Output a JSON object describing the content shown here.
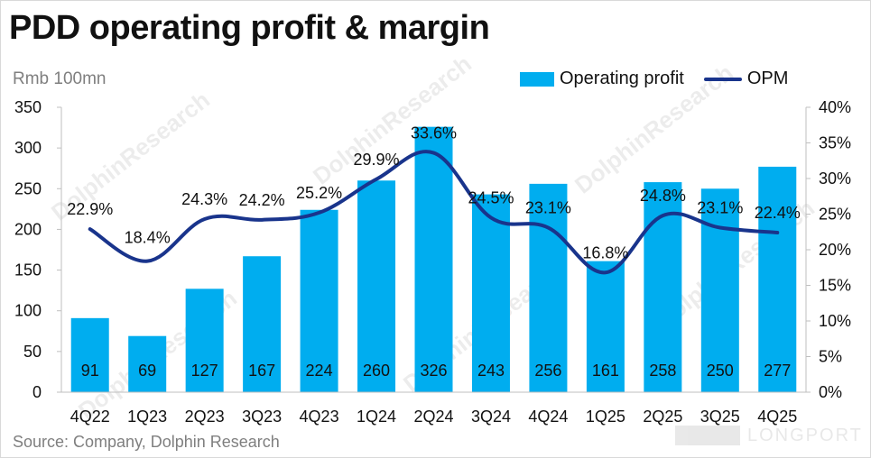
{
  "title": "PDD operating profit & margin",
  "unit_label": "Rmb 100mn",
  "source": "Source: Company, Dolphin Research",
  "watermark": "DolphinResearch",
  "brand": "LONGPORT",
  "colors": {
    "bar": "#00adef",
    "line": "#19348c",
    "axis_text": "#111111",
    "grid": "#bfbfbf"
  },
  "chart_data": {
    "type": "bar",
    "title": "PDD operating profit & margin",
    "categories": [
      "4Q22",
      "1Q23",
      "2Q23",
      "3Q23",
      "4Q23",
      "1Q24",
      "2Q24",
      "3Q24",
      "4Q24",
      "1Q25",
      "2Q25",
      "3Q25",
      "4Q25"
    ],
    "series": [
      {
        "name": "Operating profit",
        "type": "bar",
        "axis": "left",
        "values": [
          91,
          69,
          127,
          167,
          224,
          260,
          326,
          243,
          256,
          161,
          258,
          250,
          277
        ],
        "labels": [
          "91",
          "69",
          "127",
          "167",
          "224",
          "260",
          "326",
          "243",
          "256",
          "161",
          "258",
          "250",
          "277"
        ]
      },
      {
        "name": "OPM",
        "type": "line",
        "axis": "right",
        "values": [
          22.9,
          18.4,
          24.3,
          24.2,
          25.2,
          29.9,
          33.6,
          24.5,
          23.1,
          16.8,
          24.8,
          23.1,
          22.4
        ],
        "labels": [
          "22.9%",
          "18.4%",
          "24.3%",
          "24.2%",
          "25.2%",
          "29.9%",
          "33.6%",
          "24.5%",
          "23.1%",
          "16.8%",
          "24.8%",
          "23.1%",
          "22.4%"
        ]
      }
    ],
    "y_left": {
      "min": 0,
      "max": 350,
      "ticks": [
        "0",
        "50",
        "100",
        "150",
        "200",
        "250",
        "300",
        "350"
      ]
    },
    "y_right": {
      "min": 0,
      "max": 40,
      "ticks": [
        "0%",
        "5%",
        "10%",
        "15%",
        "20%",
        "25%",
        "30%",
        "35%",
        "40%"
      ]
    },
    "legend": {
      "position": "top-right",
      "items": [
        "Operating profit",
        "OPM"
      ]
    },
    "grid": false
  }
}
